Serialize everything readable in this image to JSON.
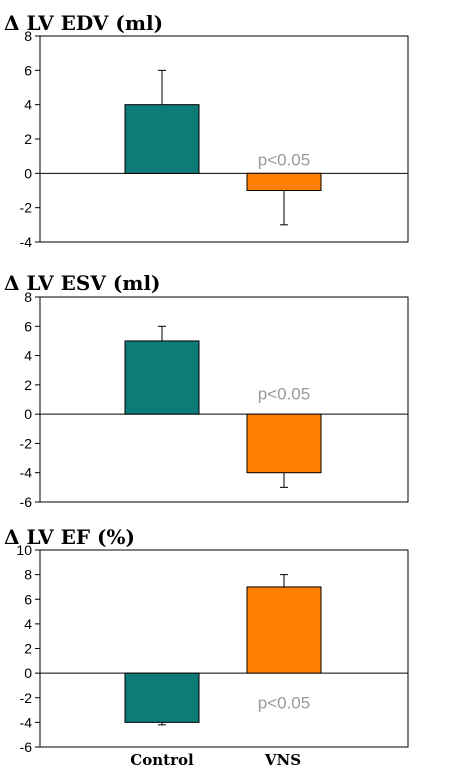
{
  "colors": {
    "control": "#0e7b78",
    "vns": "#ff7f00",
    "axis": "#000000",
    "annotation": "#9a9a9a"
  },
  "chart_data": [
    {
      "type": "bar",
      "title": "Δ LV EDV (ml)",
      "categories": [
        "Control",
        "VNS"
      ],
      "values": [
        4,
        -1
      ],
      "error_bars": [
        2,
        2
      ],
      "ylim": [
        -4,
        8
      ],
      "yticks": [
        -4,
        -2,
        0,
        2,
        4,
        6,
        8
      ],
      "annotation": {
        "text": "p<0.05",
        "x_category": "VNS",
        "y": 0.8
      }
    },
    {
      "type": "bar",
      "title": "Δ LV ESV (ml)",
      "categories": [
        "Control",
        "VNS"
      ],
      "values": [
        5,
        -4
      ],
      "error_bars": [
        1,
        1
      ],
      "ylim": [
        -6,
        8
      ],
      "yticks": [
        -6,
        -4,
        -2,
        0,
        2,
        4,
        6,
        8
      ],
      "annotation": {
        "text": "p<0.05",
        "x_category": "VNS",
        "y": 1.4
      }
    },
    {
      "type": "bar",
      "title": "Δ LV EF (%)",
      "categories": [
        "Control",
        "VNS"
      ],
      "values": [
        -4,
        7
      ],
      "error_bars": [
        0.2,
        1
      ],
      "ylim": [
        -6,
        10
      ],
      "yticks": [
        -6,
        -4,
        -2,
        0,
        2,
        4,
        6,
        8,
        10
      ],
      "annotation": {
        "text": "p<0.05",
        "x_category": "VNS",
        "y": -2.4
      }
    }
  ],
  "x_axis_labels": [
    "Control",
    "VNS"
  ]
}
